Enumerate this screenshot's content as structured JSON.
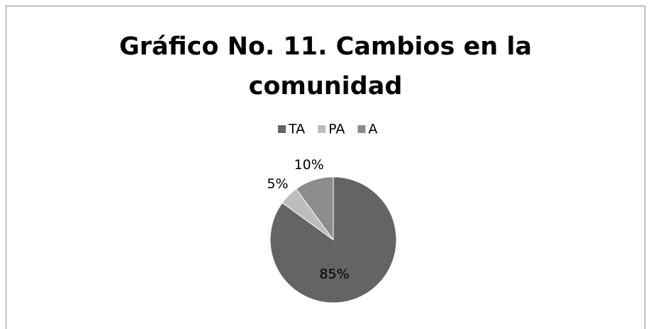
{
  "chart_data": {
    "type": "pie",
    "title": "Gráfico No. 11. Cambios en la comunidad",
    "categories": [
      "TA",
      "PA",
      "A"
    ],
    "values": [
      85,
      5,
      10
    ],
    "value_labels": [
      "85%",
      "5%",
      "10%"
    ],
    "colors": [
      "#646464",
      "#bdbdbd",
      "#8c8c8c"
    ],
    "legend": "top"
  }
}
